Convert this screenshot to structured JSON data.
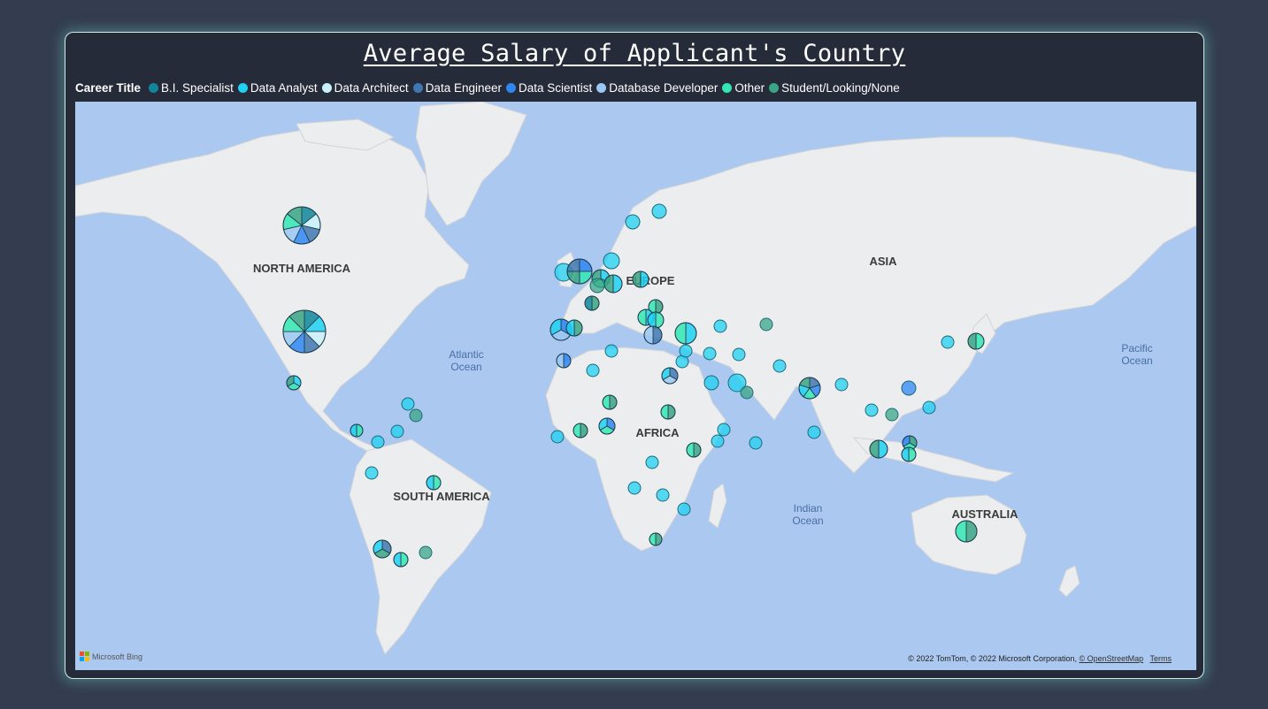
{
  "title": "Average Salary of Applicant's Country",
  "legend": {
    "title": "Career Title",
    "items": [
      {
        "label": "B.I. Specialist",
        "color": "#11869a"
      },
      {
        "label": "Data Analyst",
        "color": "#1fd1f2"
      },
      {
        "label": "Data Architect",
        "color": "#c9f0fa"
      },
      {
        "label": "Data Engineer",
        "color": "#3f78b0"
      },
      {
        "label": "Data Scientist",
        "color": "#2f86f2"
      },
      {
        "label": "Database Developer",
        "color": "#99c8f2"
      },
      {
        "label": "Other",
        "color": "#33e6b4"
      },
      {
        "label": "Student/Looking/None",
        "color": "#3aa585"
      }
    ]
  },
  "map": {
    "continent_labels": [
      "NORTH AMERICA",
      "SOUTH AMERICA",
      "EUROPE",
      "AFRICA",
      "ASIA",
      "AUSTRALIA"
    ],
    "ocean_labels": [
      [
        "Atlantic",
        "Ocean"
      ],
      [
        "Pacific",
        "Ocean"
      ],
      [
        "Indian",
        "Ocean"
      ]
    ],
    "background_color": "#aac8f0",
    "land_color": "#ecedee"
  },
  "footer": {
    "provider": "Microsoft Bing",
    "copyright": "© 2022 TomTom, © 2022 Microsoft Corporation,",
    "osm_link": "© OpenStreetMap",
    "terms_link": "Terms"
  }
}
